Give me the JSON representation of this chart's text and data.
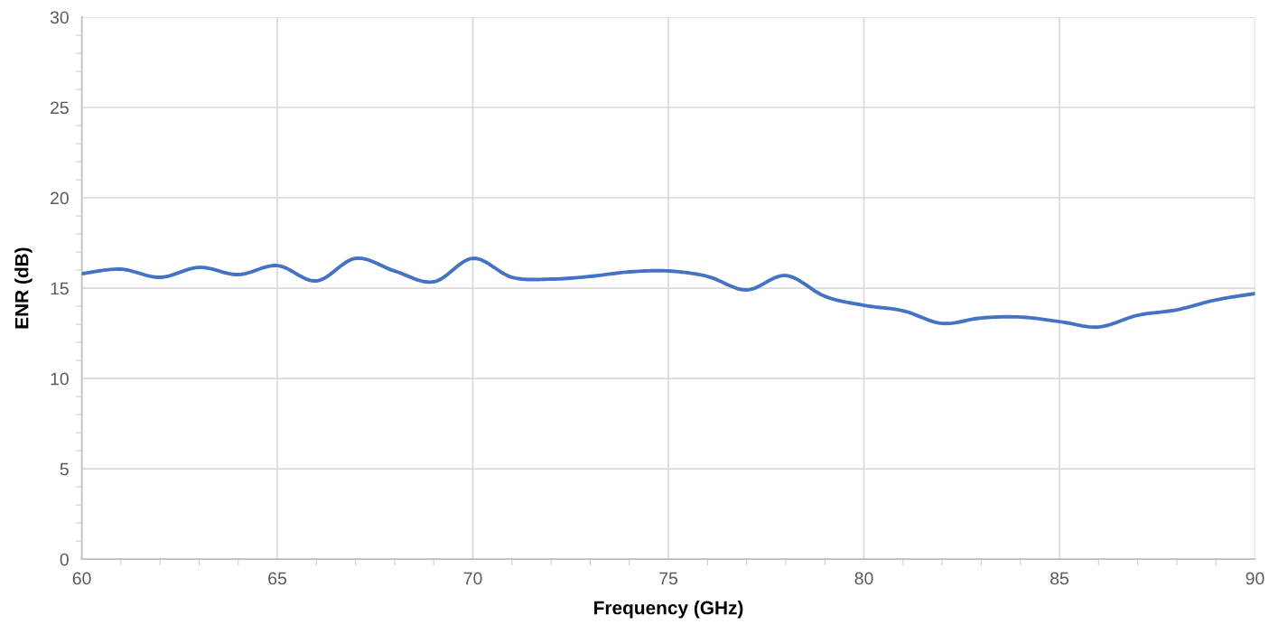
{
  "chart_data": {
    "type": "line",
    "xlabel": "Frequency (GHz)",
    "ylabel": "ENR (dB)",
    "x": [
      60,
      61,
      62,
      63,
      64,
      65,
      66,
      67,
      68,
      69,
      70,
      71,
      72,
      73,
      74,
      75,
      76,
      77,
      78,
      79,
      80,
      81,
      82,
      83,
      84,
      85,
      86,
      87,
      88,
      89,
      90
    ],
    "series": [
      {
        "color": "#4472c4",
        "values": [
          15.8,
          16.05,
          15.6,
          16.15,
          15.75,
          16.25,
          15.4,
          16.65,
          15.95,
          15.35,
          16.65,
          15.6,
          15.5,
          15.65,
          15.9,
          15.95,
          15.65,
          14.9,
          15.7,
          14.55,
          14.05,
          13.75,
          13.05,
          13.35,
          13.4,
          13.15,
          12.85,
          13.5,
          13.8,
          14.35,
          14.7
        ]
      }
    ],
    "xlim": [
      60,
      90
    ],
    "xticks": [
      60,
      65,
      70,
      75,
      80,
      85,
      90
    ],
    "ylim": [
      0,
      30
    ],
    "yticks": [
      0,
      5,
      10,
      15,
      20,
      25,
      30
    ],
    "grid": true,
    "legend": false,
    "marker": "none",
    "line_style": "solid"
  }
}
